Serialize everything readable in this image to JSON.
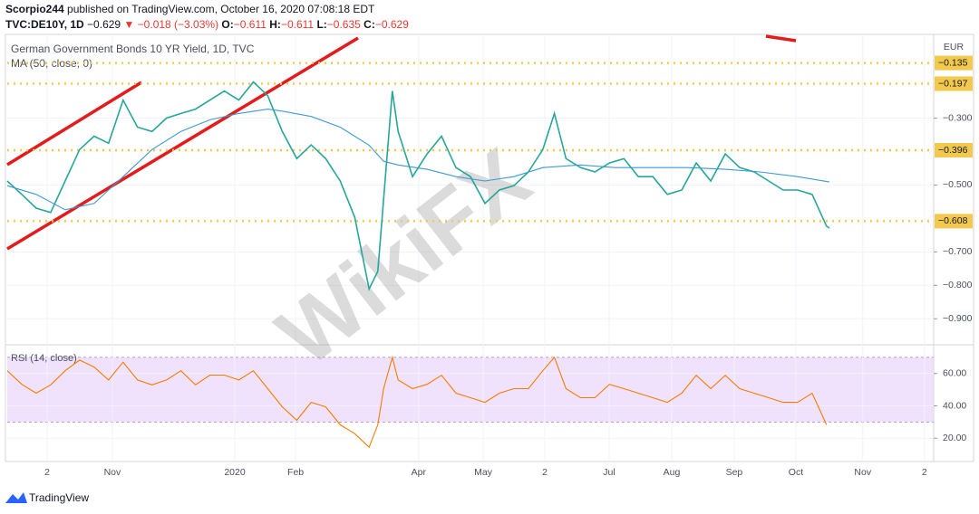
{
  "header": {
    "line1": [
      "Scorpio244",
      " published on TradingView.com, October 16, 2020 07:08:18 EDT"
    ],
    "line2": [
      "TVC:DE10Y, 1D",
      "−0.629",
      "▼",
      "−0.018 (−3.03%)",
      "O:",
      "−0.611",
      "H:",
      "−0.611",
      "L:",
      "−0.635",
      "C:",
      "−0.629"
    ]
  },
  "footer": "TradingView",
  "watermark": "WikiFX",
  "chart_data": [
    {
      "type": "line",
      "title": "German Government Bonds 10 YR Yield, 1D, TVC",
      "y_unit": "EUR",
      "xlim": [
        0,
        320
      ],
      "ylim": [
        -0.975,
        -0.055
      ],
      "yticks": [
        {
          "value": -0.3,
          "label": "−0.300"
        },
        {
          "value": -0.5,
          "label": "−0.500"
        },
        {
          "value": -0.7,
          "label": "−0.700"
        },
        {
          "value": -0.8,
          "label": "−0.800"
        },
        {
          "value": -0.9,
          "label": "−0.900"
        }
      ],
      "levels": [
        {
          "value": -0.135,
          "label": "−0.135"
        },
        {
          "value": -0.197,
          "label": "−0.197"
        },
        {
          "value": -0.396,
          "label": "−0.396"
        },
        {
          "value": -0.608,
          "label": "−0.608"
        }
      ],
      "level_color": "#f2c94c",
      "series": [
        {
          "color": "#26a69a",
          "x": [
            0,
            5,
            10,
            15,
            20,
            25,
            30,
            35,
            40,
            45,
            50,
            55,
            60,
            65,
            70,
            75,
            80,
            85,
            90,
            95,
            100,
            105,
            110,
            115,
            120,
            125,
            128,
            130,
            133,
            135,
            140,
            145,
            150,
            155,
            160,
            165,
            170,
            175,
            180,
            185,
            189,
            193,
            198,
            203,
            208,
            213,
            218,
            223,
            228,
            233,
            238,
            243,
            248,
            253,
            258,
            263,
            268,
            273,
            278,
            283,
            284
          ],
          "values": [
            -0.488,
            -0.528,
            -0.569,
            -0.582,
            -0.488,
            -0.394,
            -0.354,
            -0.375,
            -0.246,
            -0.327,
            -0.34,
            -0.3,
            -0.286,
            -0.273,
            -0.246,
            -0.219,
            -0.246,
            -0.192,
            -0.233,
            -0.34,
            -0.421,
            -0.38,
            -0.421,
            -0.488,
            -0.596,
            -0.811,
            -0.758,
            -0.542,
            -0.219,
            -0.34,
            -0.475,
            -0.407,
            -0.354,
            -0.448,
            -0.475,
            -0.555,
            -0.515,
            -0.502,
            -0.461,
            -0.394,
            -0.286,
            -0.421,
            -0.448,
            -0.461,
            -0.434,
            -0.421,
            -0.475,
            -0.475,
            -0.528,
            -0.515,
            -0.434,
            -0.488,
            -0.407,
            -0.448,
            -0.461,
            -0.488,
            -0.515,
            -0.515,
            -0.528,
            -0.623,
            -0.629
          ]
        },
        {
          "name": "MA (50, close, 0)",
          "color": "#3d9ad1",
          "x": [
            0,
            10,
            20,
            30,
            40,
            50,
            60,
            70,
            80,
            90,
            95,
            105,
            115,
            125,
            130,
            135,
            145,
            155,
            165,
            175,
            185,
            198,
            210,
            223,
            235,
            248,
            260,
            273,
            284
          ],
          "values": [
            -0.502,
            -0.528,
            -0.574,
            -0.555,
            -0.475,
            -0.394,
            -0.34,
            -0.305,
            -0.286,
            -0.273,
            -0.279,
            -0.295,
            -0.327,
            -0.381,
            -0.429,
            -0.44,
            -0.453,
            -0.475,
            -0.488,
            -0.475,
            -0.448,
            -0.44,
            -0.448,
            -0.448,
            -0.448,
            -0.453,
            -0.461,
            -0.475,
            -0.491
          ]
        }
      ]
    },
    {
      "type": "line",
      "xlim": [
        0,
        320
      ],
      "ylim": [
        6.7,
        77.2
      ],
      "yticks": [
        {
          "value": 20,
          "label": "20.00"
        },
        {
          "value": 40,
          "label": "40.00"
        },
        {
          "value": 60,
          "label": "60.00"
        }
      ],
      "band": [
        30,
        70
      ],
      "band_color": "#e9d5fb",
      "xticks": [
        {
          "value": 13.8,
          "label": "2"
        },
        {
          "value": 36.3,
          "label": "Nov"
        },
        {
          "value": 78.6,
          "label": "2020"
        },
        {
          "value": 99.6,
          "label": "Feb"
        },
        {
          "value": 142.1,
          "label": "Apr"
        },
        {
          "value": 164.4,
          "label": "May"
        },
        {
          "value": 185.7,
          "label": "2"
        },
        {
          "value": 207.9,
          "label": "Jul"
        },
        {
          "value": 229.5,
          "label": "Aug"
        },
        {
          "value": 251.1,
          "label": "Sep"
        },
        {
          "value": 272.4,
          "label": "Oct"
        },
        {
          "value": 295.5,
          "label": "Nov"
        },
        {
          "value": 316.8,
          "label": "2"
        }
      ],
      "series": [
        {
          "name": "RSI (14, close)",
          "color": "#f57c00",
          "x": [
            0,
            5,
            10,
            15,
            20,
            25,
            30,
            35,
            40,
            45,
            50,
            55,
            60,
            65,
            70,
            75,
            80,
            85,
            90,
            95,
            100,
            105,
            110,
            115,
            120,
            125,
            128,
            130,
            133,
            135,
            140,
            145,
            150,
            155,
            160,
            165,
            170,
            175,
            180,
            185,
            189,
            193,
            198,
            203,
            208,
            213,
            218,
            223,
            228,
            233,
            238,
            243,
            248,
            253,
            258,
            263,
            268,
            273,
            278,
            283
          ],
          "values": [
            61.7,
            53.3,
            47.8,
            53,
            61.7,
            68.3,
            64,
            56,
            67,
            56,
            53,
            56,
            61.7,
            53,
            59,
            59,
            56,
            61.7,
            50.6,
            39.4,
            31.1,
            42.2,
            39.4,
            28.3,
            22.8,
            14.4,
            28.3,
            50.6,
            70,
            56,
            50.6,
            53.3,
            58.9,
            47.8,
            45,
            42.2,
            47.8,
            50.6,
            50.6,
            61.7,
            70,
            50.6,
            45,
            45,
            53.3,
            50.6,
            47.8,
            45,
            42.2,
            47.8,
            58.9,
            50.6,
            58.9,
            50.6,
            47.8,
            45,
            42.2,
            42.2,
            47.8,
            28.3
          ]
        }
      ]
    }
  ]
}
